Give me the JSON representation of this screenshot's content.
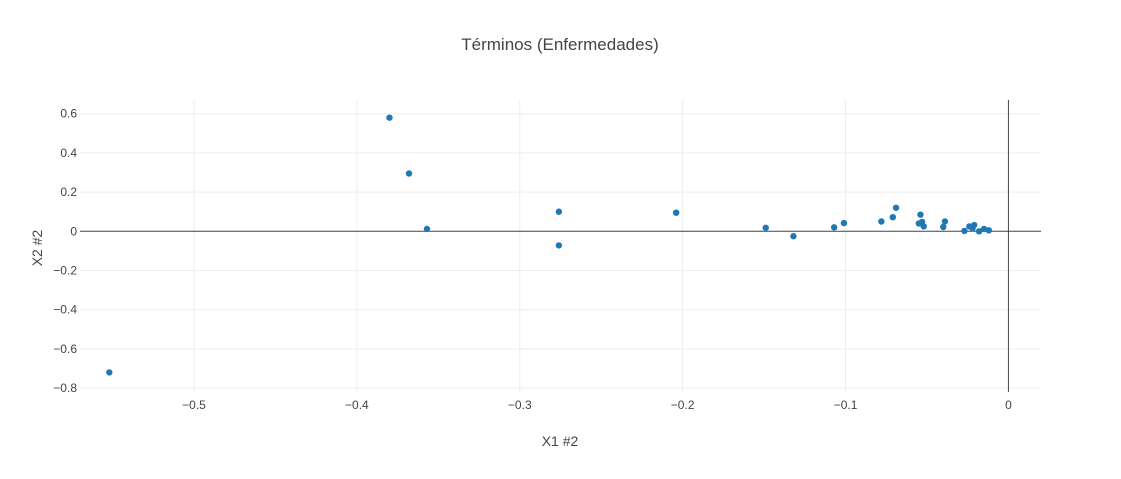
{
  "chart_data": {
    "type": "scatter",
    "title": "Términos (Enfermedades)",
    "xlabel": "X1 #2",
    "ylabel": "X2 #2",
    "xlim": [
      -0.57,
      0.02
    ],
    "ylim": [
      -0.82,
      0.67
    ],
    "x_ticks": [
      -0.5,
      -0.4,
      -0.3,
      -0.2,
      -0.1,
      0
    ],
    "x_tick_labels": [
      "−0.5",
      "−0.4",
      "−0.3",
      "−0.2",
      "−0.1",
      "0"
    ],
    "y_ticks": [
      0.6,
      0.4,
      0.2,
      0,
      -0.2,
      -0.4,
      -0.6,
      -0.8
    ],
    "y_tick_labels": [
      "0.6",
      "0.4",
      "0.2",
      "0",
      "−0.2",
      "−0.4",
      "−0.6",
      "−0.8"
    ],
    "grid": true,
    "marker_color": "#1f77b4",
    "series": [
      {
        "x": [
          -0.552,
          -0.38,
          -0.368,
          -0.357,
          -0.276,
          -0.276,
          -0.204,
          -0.149,
          -0.132,
          -0.107,
          -0.101,
          -0.078,
          -0.071,
          -0.069,
          -0.055,
          -0.054,
          -0.053,
          -0.052,
          -0.04,
          -0.039,
          -0.027,
          -0.024,
          -0.022,
          -0.021,
          -0.018,
          -0.015,
          -0.012
        ],
        "y": [
          -0.72,
          0.58,
          0.295,
          0.012,
          0.1,
          -0.072,
          0.095,
          0.018,
          -0.025,
          0.02,
          0.042,
          0.05,
          0.072,
          0.12,
          0.04,
          0.085,
          0.048,
          0.025,
          0.022,
          0.05,
          0.002,
          0.025,
          0.015,
          0.032,
          0.0,
          0.012,
          0.005
        ]
      }
    ]
  }
}
